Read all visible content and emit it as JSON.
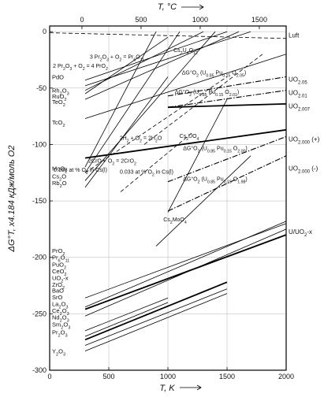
{
  "chart_data": {
    "type": "line",
    "title": "",
    "xlabel": "T, K",
    "ylabel": "ΔG°T, x4.184 кДж/моль O2",
    "x2label": "T, °C",
    "xlim": [
      0,
      2000
    ],
    "ylim": [
      -300,
      5
    ],
    "x_ticks": [
      0,
      500,
      1000,
      1500,
      2000
    ],
    "y_ticks": [
      0,
      -50,
      -100,
      -150,
      -200,
      -250,
      -300
    ],
    "x2_ticks": [
      0,
      500,
      1000,
      1500
    ],
    "grid": true,
    "legend": "none",
    "left_labels": [
      {
        "text": "PdO",
        "y": -40
      },
      {
        "text": "Rh2O3",
        "y": -52
      },
      {
        "text": "RuO2",
        "y": -57
      },
      {
        "text": "TeO2",
        "y": -62
      },
      {
        "text": "TcO2",
        "y": -80
      },
      {
        "text": "MoO2",
        "y": -121
      },
      {
        "text": "Cs2O",
        "y": -128
      },
      {
        "text": "Rb2O",
        "y": -134
      },
      {
        "text": "PrO2",
        "y": -194
      },
      {
        "text": "Pr6O11",
        "y": -200
      },
      {
        "text": "PuO2",
        "y": -206
      },
      {
        "text": "CeO2",
        "y": -212
      },
      {
        "text": "UO2-x",
        "y": -218
      },
      {
        "text": "ZrO2",
        "y": -224
      },
      {
        "text": "BaO",
        "y": -229
      },
      {
        "text": "SrO",
        "y": -235
      },
      {
        "text": "La2O3",
        "y": -241
      },
      {
        "text": "Ce2O3",
        "y": -247
      },
      {
        "text": "Nd2O3",
        "y": -253
      },
      {
        "text": "Sm2O3",
        "y": -259
      },
      {
        "text": "Pr2O3",
        "y": -266
      },
      {
        "text": "Y2O3",
        "y": -283
      }
    ],
    "right_labels": [
      {
        "text": "Luft",
        "y": -3
      },
      {
        "text": "UO2.05",
        "y": -42
      },
      {
        "text": "UO2.01",
        "y": -54
      },
      {
        "text": "UO2.007",
        "y": -66
      },
      {
        "text": "UO2.000 (+)",
        "y": -95
      },
      {
        "text": "UO2.000 (-)",
        "y": -121
      },
      {
        "text": "U/UO2-x",
        "y": -177
      }
    ],
    "annotations": [
      {
        "text": "2 Pr2O3 + O2 = 4 PrO2",
        "x": 260,
        "y": -32
      },
      {
        "text": "3 Pr2O3 + O2 = Pr6O11",
        "x": 570,
        "y": -24
      },
      {
        "text": "Cs2U4O12",
        "x": 1150,
        "y": -18
      },
      {
        "text": "ΔG°O2 (U0.85 Pu0.15 O2.05)",
        "x": 1390,
        "y": -38
      },
      {
        "text": "ΔG°O2 (U0.85 Pu0.15 O2.01)",
        "x": 1330,
        "y": -55
      },
      {
        "text": "2H2 + O2 = 2H2O",
        "x": 770,
        "y": -96
      },
      {
        "text": "Cs2UO4",
        "x": 1180,
        "y": -94
      },
      {
        "text": "2CrO + O2 = 2CrO2",
        "x": 530,
        "y": -116
      },
      {
        "text": "ΔG°O2 (U0.85 Pu0.15 O2.00)",
        "x": 1400,
        "y": -105
      },
      {
        "text": "0.168 at % O2 in Cs(l)",
        "x": 260,
        "y": -124
      },
      {
        "text": "0.033 at % O2 in Cs(l)",
        "x": 820,
        "y": -126
      },
      {
        "text": "ΔG°O2 (U0.85 Pu0.15 O1.98)",
        "x": 1400,
        "y": -132
      },
      {
        "text": "Cs2MoO4",
        "x": 1060,
        "y": -168
      }
    ],
    "series": [
      {
        "name": "",
        "style": "dashed",
        "x": [
          0,
          2000
        ],
        "y": [
          -1,
          -6
        ]
      },
      {
        "name": "",
        "style": "solid",
        "x": [
          300,
          1500
        ],
        "y": [
          -43,
          0
        ]
      },
      {
        "name": "",
        "style": "solid",
        "x": [
          300,
          1700
        ],
        "y": [
          -48,
          0
        ]
      },
      {
        "name": "",
        "style": "solid",
        "x": [
          300,
          1300
        ],
        "y": [
          -52,
          0
        ]
      },
      {
        "name": "",
        "style": "solid",
        "x": [
          300,
          1000
        ],
        "y": [
          -55,
          -5
        ]
      },
      {
        "name": "",
        "style": "solid",
        "x": [
          300,
          1600
        ],
        "y": [
          -60,
          0
        ]
      },
      {
        "name": "",
        "style": "solid",
        "x": [
          300,
          2000
        ],
        "y": [
          -77,
          -20
        ]
      },
      {
        "name": "",
        "style": "solid",
        "x": [
          300,
          900
        ],
        "y": [
          -120,
          0
        ]
      },
      {
        "name": "",
        "style": "solid",
        "x": [
          300,
          1100
        ],
        "y": [
          -125,
          0
        ]
      },
      {
        "name": "",
        "style": "solid",
        "x": [
          300,
          1400
        ],
        "y": [
          -132,
          0
        ]
      },
      {
        "name": "",
        "style": "solid",
        "x": [
          300,
          1000
        ],
        "y": [
          -138,
          -40
        ]
      },
      {
        "name": "",
        "style": "dashed",
        "x": [
          800,
          1800
        ],
        "y": [
          -100,
          -20
        ]
      },
      {
        "name": "",
        "style": "dashed",
        "x": [
          300,
          1500
        ],
        "y": [
          -125,
          -40
        ]
      },
      {
        "name": "",
        "style": "dashed",
        "x": [
          600,
          1200
        ],
        "y": [
          -142,
          -90
        ]
      },
      {
        "name": "",
        "style": "dashdot",
        "x": [
          1000,
          2000
        ],
        "y": [
          -57,
          -40
        ]
      },
      {
        "name": "",
        "style": "dashdot",
        "x": [
          1000,
          2000
        ],
        "y": [
          -67,
          -52
        ]
      },
      {
        "name": "",
        "style": "solid-thick",
        "x": [
          1000,
          2000
        ],
        "y": [
          -67,
          -64
        ]
      },
      {
        "name": "",
        "style": "solid-thick",
        "x": [
          300,
          2000
        ],
        "y": [
          -112,
          -87
        ]
      },
      {
        "name": "",
        "style": "dashdot",
        "x": [
          1000,
          2000
        ],
        "y": [
          -133,
          -93
        ]
      },
      {
        "name": "",
        "style": "dashdot",
        "x": [
          1000,
          2000
        ],
        "y": [
          -159,
          -110
        ]
      },
      {
        "name": "",
        "style": "solid",
        "x": [
          1000,
          1500
        ],
        "y": [
          -160,
          -60
        ]
      },
      {
        "name": "",
        "style": "solid",
        "x": [
          900,
          1700
        ],
        "y": [
          -190,
          -110
        ]
      },
      {
        "name": "",
        "style": "solid-thick",
        "x": [
          300,
          2000
        ],
        "y": [
          -246,
          -180
        ]
      },
      {
        "name": "",
        "style": "solid",
        "x": [
          300,
          2000
        ],
        "y": [
          -236,
          -170
        ]
      },
      {
        "name": "",
        "style": "solid",
        "x": [
          300,
          2000
        ],
        "y": [
          -244,
          -168
        ]
      },
      {
        "name": "",
        "style": "solid",
        "x": [
          300,
          2000
        ],
        "y": [
          -252,
          -175
        ]
      },
      {
        "name": "",
        "style": "solid-thick",
        "x": [
          300,
          1500
        ],
        "y": [
          -273,
          -222
        ]
      },
      {
        "name": "",
        "style": "solid",
        "x": [
          300,
          1000
        ],
        "y": [
          -270,
          -240
        ]
      },
      {
        "name": "",
        "style": "solid",
        "x": [
          300,
          1500
        ],
        "y": [
          -278,
          -228
        ]
      },
      {
        "name": "",
        "style": "solid",
        "x": [
          300,
          1000
        ],
        "y": [
          -265,
          -236
        ]
      },
      {
        "name": "",
        "style": "solid",
        "x": [
          300,
          1500
        ],
        "y": [
          -283,
          -232
        ]
      }
    ]
  }
}
